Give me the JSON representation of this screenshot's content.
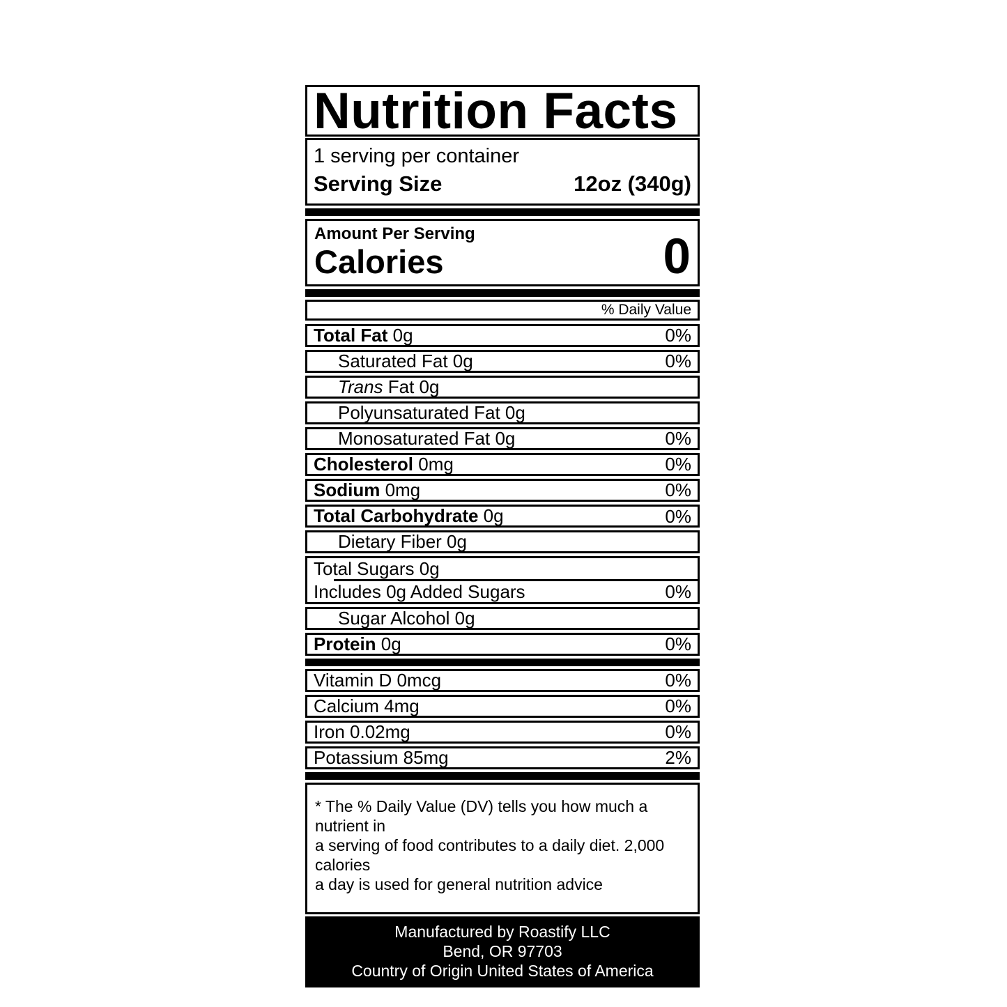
{
  "label": {
    "title": "Nutrition Facts",
    "serving": {
      "per_container": "1 serving per container",
      "size_label": "Serving Size",
      "size_value": "12oz (340g)"
    },
    "calories": {
      "amount_per_serving": "Amount Per Serving",
      "label": "Calories",
      "value": "0"
    },
    "daily_value_header": "% Daily Value",
    "rows": [
      {
        "bold": "Total Fat",
        "italic": "",
        "text": " 0g",
        "dv": "0%"
      },
      {
        "bold": "",
        "italic": "",
        "text": "Saturated Fat 0g",
        "dv": "0%"
      },
      {
        "bold": "",
        "italic": "Trans",
        "text": " Fat 0g",
        "dv": ""
      },
      {
        "bold": "",
        "italic": "",
        "text": "Polyunsaturated Fat 0g",
        "dv": ""
      },
      {
        "bold": "",
        "italic": "",
        "text": "Monosaturated Fat 0g",
        "dv": "0%"
      },
      {
        "bold": "Cholesterol",
        "italic": "",
        "text": " 0mg",
        "dv": "0%"
      },
      {
        "bold": "Sodium",
        "italic": "",
        "text": " 0mg",
        "dv": "0%"
      },
      {
        "bold": "Total Carbohydrate",
        "italic": "",
        "text": " 0g",
        "dv": "0%"
      },
      {
        "bold": "",
        "italic": "",
        "text": "Dietary Fiber 0g",
        "dv": ""
      },
      {
        "bold": "",
        "italic": "",
        "text": "Total Sugars 0g",
        "dv": ""
      },
      {
        "bold": "",
        "italic": "",
        "text": "Includes 0g Added Sugars",
        "dv": "0%"
      },
      {
        "bold": "",
        "italic": "",
        "text": "Sugar Alcohol 0g",
        "dv": ""
      },
      {
        "bold": "Protein",
        "italic": "",
        "text": " 0g",
        "dv": "0%"
      }
    ],
    "micronutrients": [
      {
        "name": "Vitamin D 0mcg",
        "dv": "0%"
      },
      {
        "name": "Calcium 4mg",
        "dv": "0%"
      },
      {
        "name": "Iron 0.02mg",
        "dv": "0%"
      },
      {
        "name": "Potassium 85mg",
        "dv": "2%"
      }
    ],
    "footnote_lines": [
      "* The % Daily Value (DV) tells you how much a nutrient in",
      "a serving of food contributes to a daily diet. 2,000 calories",
      "a day is used for general nutrition advice"
    ],
    "manufacturer_lines": [
      "Manufactured by Roastify LLC",
      "Bend, OR 97703",
      "Country of Origin United States of America"
    ]
  }
}
